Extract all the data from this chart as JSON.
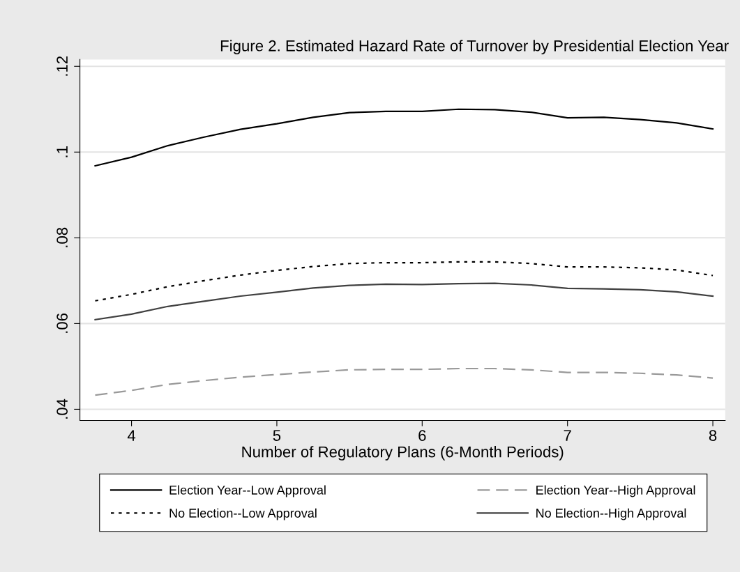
{
  "chart_data": {
    "type": "line",
    "title": "Figure 2. Estimated Hazard Rate of Turnover by Presidential Election Year",
    "xlabel": "Number of Regulatory Plans (6-Month Periods)",
    "x": [
      3.75,
      4,
      4.25,
      4.5,
      4.75,
      5,
      5.25,
      5.5,
      5.75,
      6,
      6.25,
      6.5,
      6.75,
      7,
      7.25,
      7.5,
      7.75,
      8
    ],
    "series": [
      {
        "name": "Election Year--Low Approval",
        "color": "#000000",
        "line_style": "solid",
        "values": [
          0.0968,
          0.0988,
          0.1015,
          0.1035,
          0.1053,
          0.1066,
          0.1081,
          0.1092,
          0.1095,
          0.1095,
          0.11,
          0.1099,
          0.1093,
          0.108,
          0.1081,
          0.1076,
          0.1068,
          0.1054
        ]
      },
      {
        "name": "Election Year--High Approval",
        "color": "#999999",
        "line_style": "dashed",
        "values": [
          0.0433,
          0.0444,
          0.0458,
          0.0467,
          0.0475,
          0.0481,
          0.0487,
          0.0492,
          0.0493,
          0.0493,
          0.0495,
          0.0495,
          0.0492,
          0.0486,
          0.0486,
          0.0484,
          0.048,
          0.0473
        ]
      },
      {
        "name": "No Election--Low Approval",
        "color": "#000000",
        "line_style": "dotted",
        "values": [
          0.0653,
          0.0668,
          0.0686,
          0.07,
          0.0713,
          0.0724,
          0.0733,
          0.074,
          0.0742,
          0.0742,
          0.0744,
          0.0744,
          0.074,
          0.0732,
          0.0732,
          0.073,
          0.0725,
          0.0712
        ]
      },
      {
        "name": "No Election--High Approval",
        "color": "#404040",
        "line_style": "solid",
        "values": [
          0.0609,
          0.0622,
          0.064,
          0.0652,
          0.0664,
          0.0673,
          0.0683,
          0.0689,
          0.0692,
          0.0691,
          0.0693,
          0.0694,
          0.069,
          0.0682,
          0.0681,
          0.0679,
          0.0674,
          0.0664
        ]
      }
    ],
    "xlim": [
      3.645,
      8.085
    ],
    "xticks": [
      4,
      5,
      6,
      7,
      8
    ],
    "ylim": [
      0.0374,
      0.1216
    ],
    "yticks": [
      {
        "value": 0.04,
        "label": ".04"
      },
      {
        "value": 0.06,
        "label": ".06"
      },
      {
        "value": 0.08,
        "label": ".08"
      },
      {
        "value": 0.1,
        "label": ".1"
      },
      {
        "value": 0.12,
        "label": ".12"
      }
    ],
    "grid": "y",
    "legend": "bottom",
    "marker": "none"
  }
}
